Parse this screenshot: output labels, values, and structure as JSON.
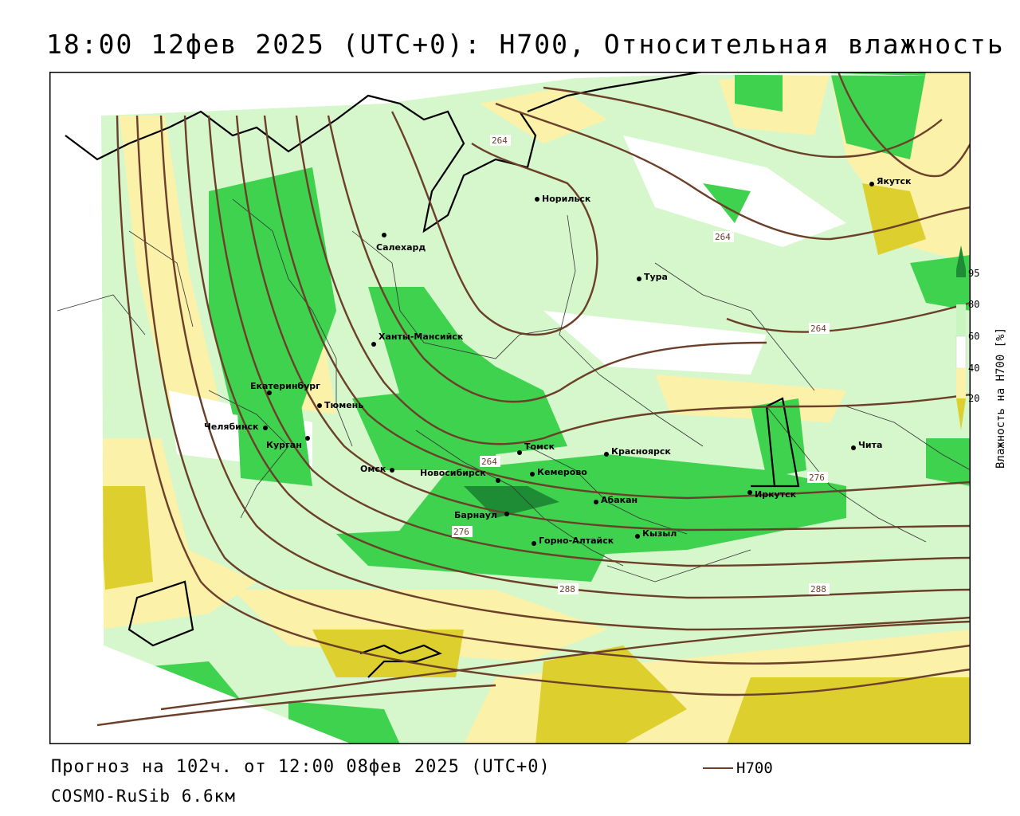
{
  "title": "18:00 12фев 2025 (UTC+0): H700, Относительная влажность",
  "footer": {
    "forecast": "Прогноз на 102ч. от 12:00 08фев 2025 (UTC+0)",
    "model": "COSMO-RuSib 6.6км"
  },
  "legend": {
    "line_label": "H700",
    "line_color": "#6b3f2a"
  },
  "colorbar": {
    "title": "Влажность на H700 [%]",
    "ticks": [
      "95",
      "80",
      "60",
      "40",
      "20"
    ],
    "colors": {
      "dark_green": "#1e8c34",
      "green": "#3ed24e",
      "light_green": "#c8f5c0",
      "white": "#ffffff",
      "light_yellow": "#fbf1a8",
      "yellow": "#ddd02e"
    }
  },
  "cities": [
    {
      "name": "Норильск"
    },
    {
      "name": "Якутск"
    },
    {
      "name": "Салехард"
    },
    {
      "name": "Тура"
    },
    {
      "name": "Ханты-Мансийск"
    },
    {
      "name": "Екатеринбург"
    },
    {
      "name": "Тюмень"
    },
    {
      "name": "Челябинск"
    },
    {
      "name": "Курган"
    },
    {
      "name": "Томск"
    },
    {
      "name": "Красноярск"
    },
    {
      "name": "Омск"
    },
    {
      "name": "Новосибирск"
    },
    {
      "name": "Кемерово"
    },
    {
      "name": "Абакан"
    },
    {
      "name": "Иркутск"
    },
    {
      "name": "Чита"
    },
    {
      "name": "Барнаул"
    },
    {
      "name": "Горно-Алтайск"
    },
    {
      "name": "Кызыл"
    }
  ],
  "contour_labels": [
    "264",
    "264",
    "264",
    "264",
    "276",
    "276",
    "288",
    "288"
  ]
}
